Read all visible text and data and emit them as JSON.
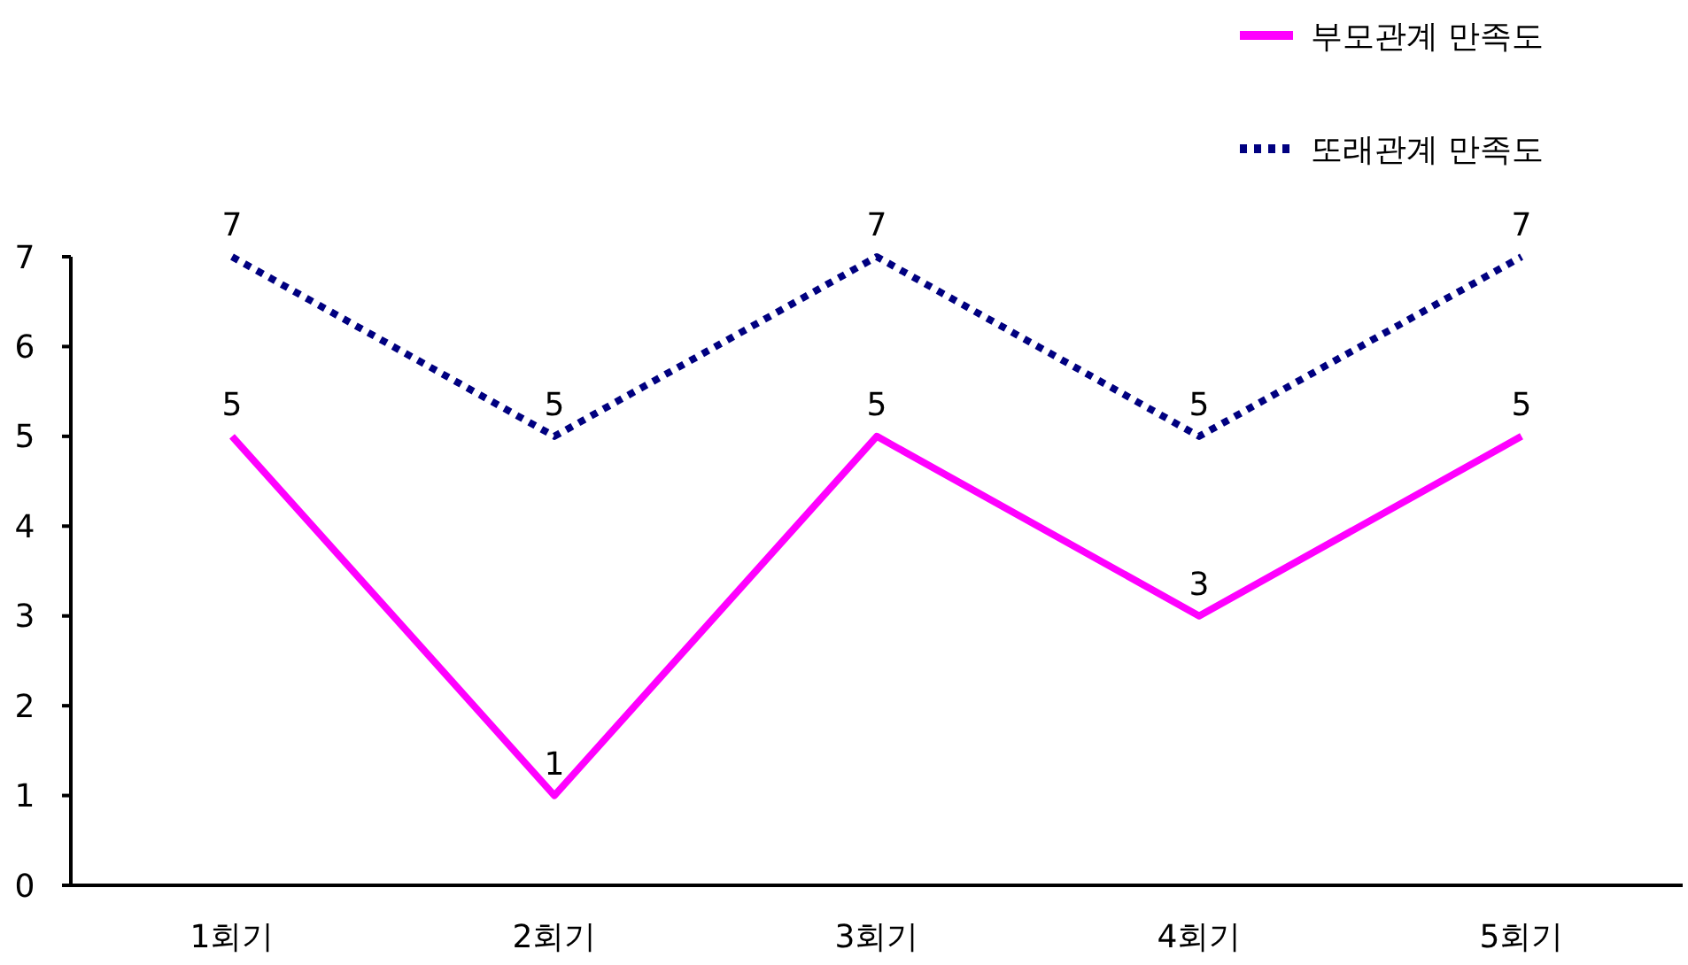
{
  "chart_data": {
    "type": "line",
    "categories": [
      "1회기",
      "2회기",
      "3회기",
      "4회기",
      "5회기"
    ],
    "series": [
      {
        "name": "부모관계 만족도",
        "color": "#ff00ff",
        "line_style": "solid",
        "values": [
          5,
          1,
          5,
          3,
          5
        ]
      },
      {
        "name": "또래관계 만족도",
        "color": "#000080",
        "line_style": "dotted",
        "values": [
          7,
          5,
          7,
          5,
          7
        ]
      }
    ],
    "ylim": [
      0,
      7
    ],
    "yticks": [
      0,
      1,
      2,
      3,
      4,
      5,
      6,
      7
    ],
    "grid": false,
    "legend": "top right",
    "data_labels": true,
    "marker": "none"
  }
}
